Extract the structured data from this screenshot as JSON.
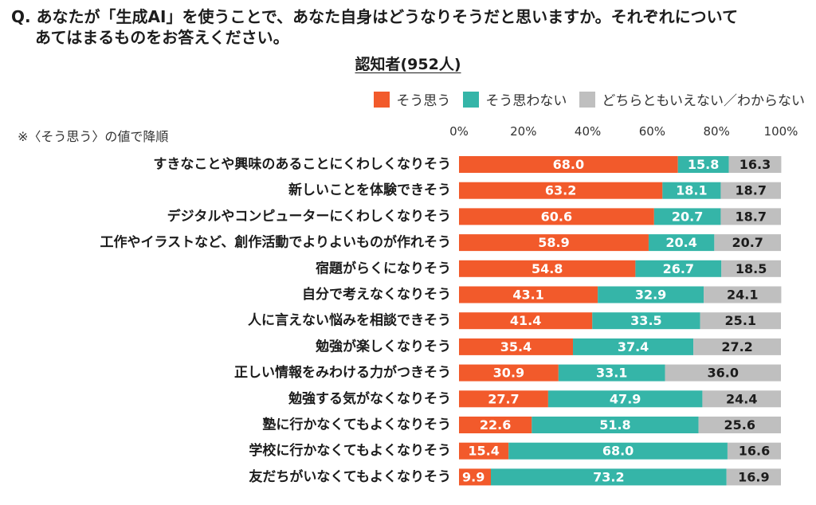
{
  "question": {
    "line1": "Q. あなたが「生成AI」を使うことで、あなた自身はどうなりそうだと思いますか。それぞれについて",
    "line2": "あてはまるものをお答えください。"
  },
  "note": "※〈そう思う〉の値で降順",
  "colors": {
    "agree": "#f25a2b",
    "disagree": "#35b5a8",
    "unsure": "#bfbfbf",
    "text_dark": "#1c1c1c",
    "text_on_dark": "#ffffff"
  },
  "chart_data": {
    "type": "bar",
    "orientation": "horizontal",
    "stacked": true,
    "title": "認知者(952人)",
    "xlim": [
      0,
      100
    ],
    "x_ticks": [
      "0%",
      "20%",
      "40%",
      "60%",
      "80%",
      "100%"
    ],
    "grid": false,
    "legend_position": "top-right",
    "categories": [
      "すきなことや興味のあることにくわしくなりそう",
      "新しいことを体験できそう",
      "デジタルやコンピューターにくわしくなりそう",
      "工作やイラストなど、創作活動でよりよいものが作れそう",
      "宿題がらくになりそう",
      "自分で考えなくなりそう",
      "人に言えない悩みを相談できそう",
      "勉強が楽しくなりそう",
      "正しい情報をみわける力がつきそう",
      "勉強する気がなくなりそう",
      "塾に行かなくてもよくなりそう",
      "学校に行かなくてもよくなりそう",
      "友だちがいなくてもよくなりそう"
    ],
    "series": [
      {
        "name": "そう思う",
        "key": "agree",
        "values": [
          68.0,
          63.2,
          60.6,
          58.9,
          54.8,
          43.1,
          41.4,
          35.4,
          30.9,
          27.7,
          22.6,
          15.4,
          9.9
        ]
      },
      {
        "name": "そう思わない",
        "key": "disagree",
        "values": [
          15.8,
          18.1,
          20.7,
          20.4,
          26.7,
          32.9,
          33.5,
          37.4,
          33.1,
          47.9,
          51.8,
          68.0,
          73.2
        ]
      },
      {
        "name": "どちらともいえない／わからない",
        "key": "unsure",
        "values": [
          16.3,
          18.7,
          18.7,
          20.7,
          18.5,
          24.1,
          25.1,
          27.2,
          36.0,
          24.4,
          25.6,
          16.6,
          16.9
        ]
      }
    ]
  }
}
